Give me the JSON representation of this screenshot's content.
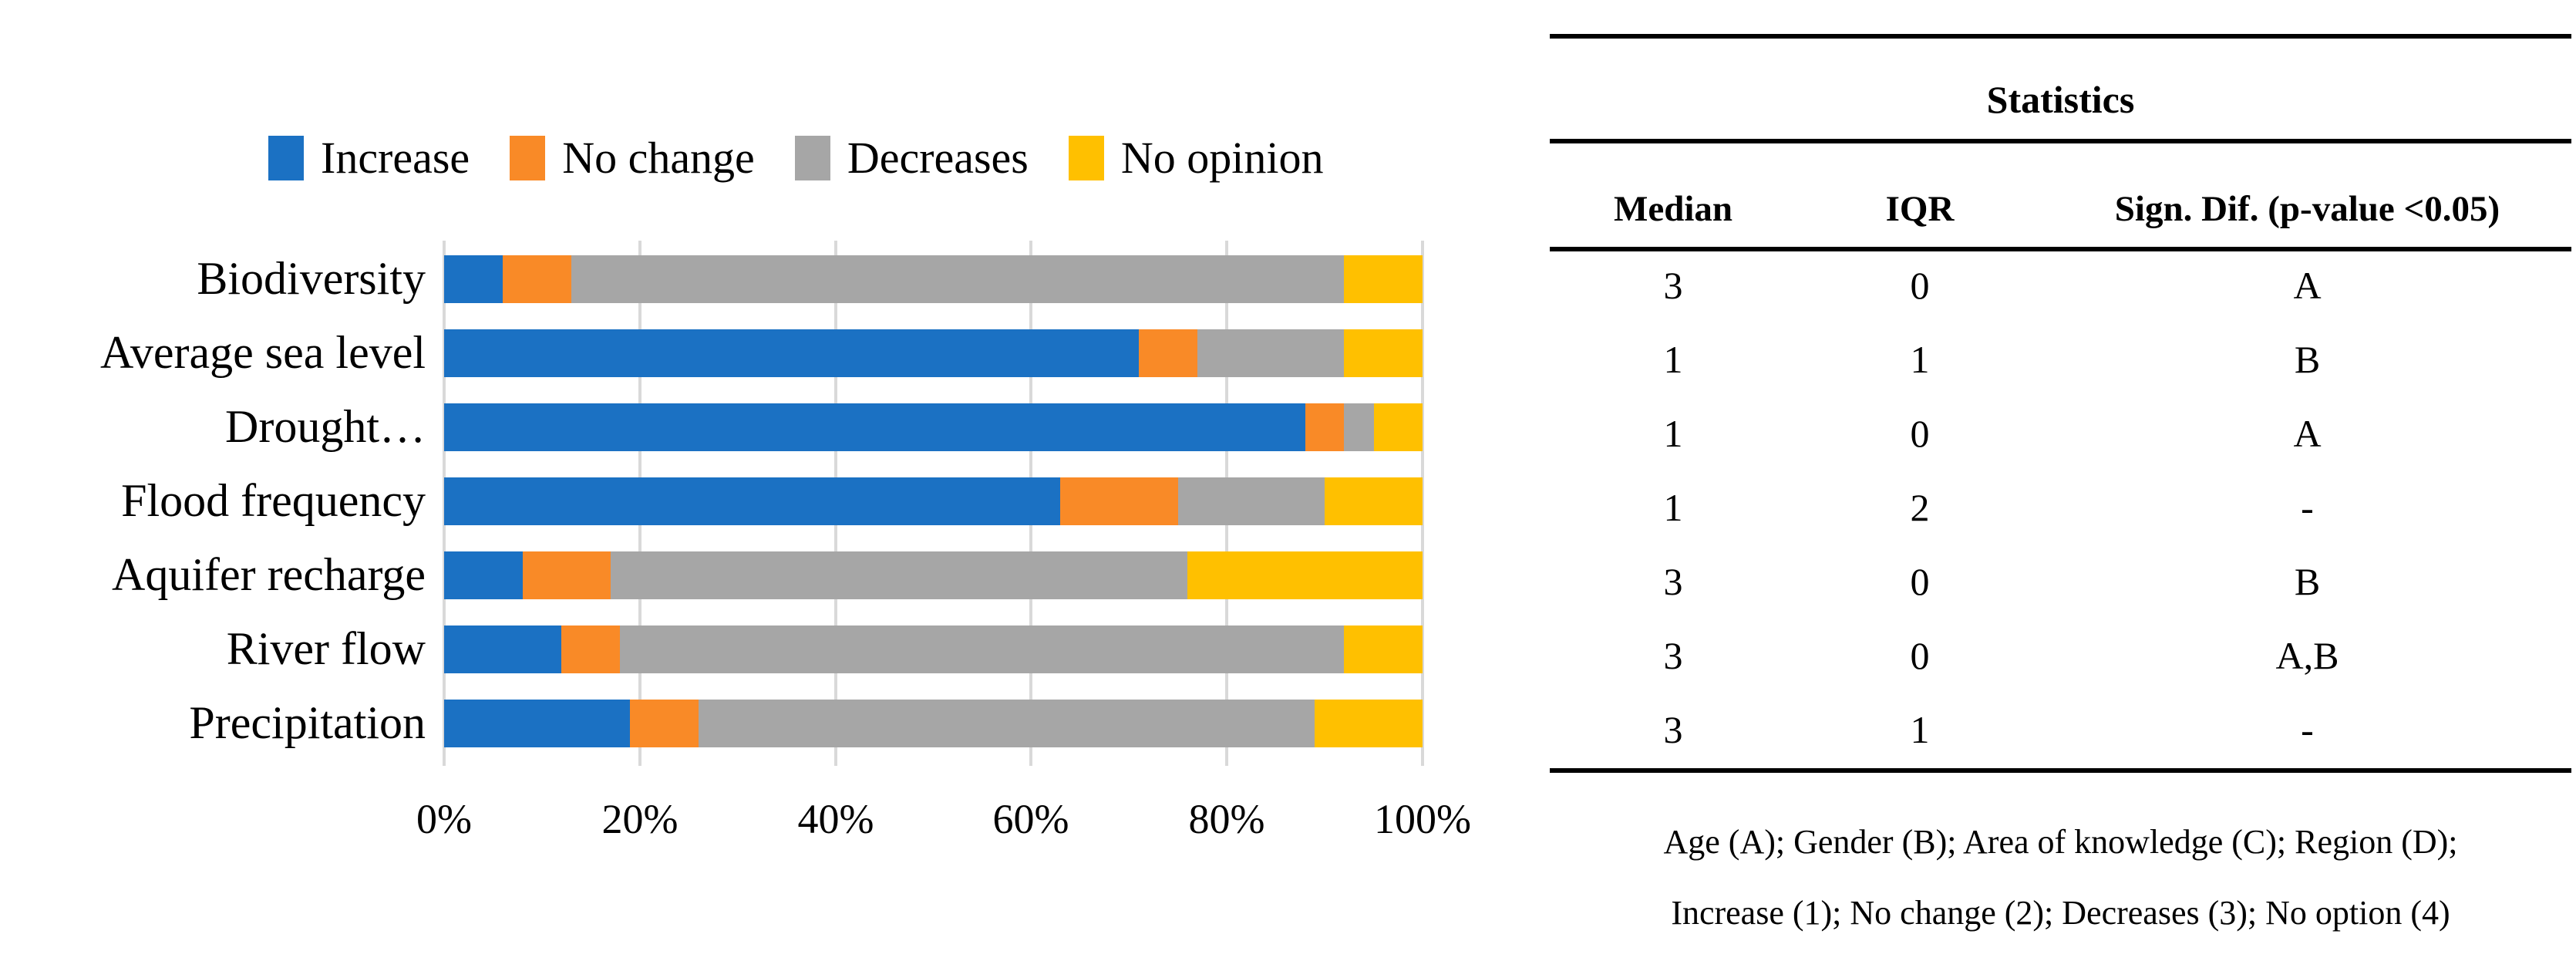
{
  "legend": [
    {
      "label": "Increase",
      "color": "#1b71c3"
    },
    {
      "label": "No change",
      "color": "#f98a27"
    },
    {
      "label": "Decreases",
      "color": "#a6a6a6"
    },
    {
      "label": "No opinion",
      "color": "#ffc000"
    }
  ],
  "chart_data": {
    "type": "bar",
    "orientation": "horizontal",
    "stacked": true,
    "unit": "percent",
    "categories": [
      "Biodiversity",
      "Average sea level",
      "Drought…",
      "Flood frequency",
      "Aquifer recharge",
      "River flow",
      "Precipitation"
    ],
    "series": [
      {
        "name": "Increase",
        "color": "#1b71c3",
        "values": [
          6,
          71,
          88,
          63,
          8,
          12,
          19
        ]
      },
      {
        "name": "No change",
        "color": "#f98a27",
        "values": [
          7,
          6,
          4,
          12,
          9,
          6,
          7
        ]
      },
      {
        "name": "Decreases",
        "color": "#a6a6a6",
        "values": [
          79,
          15,
          3,
          15,
          59,
          74,
          63
        ]
      },
      {
        "name": "No opinion",
        "color": "#ffc000",
        "values": [
          8,
          8,
          5,
          10,
          24,
          8,
          11
        ]
      }
    ],
    "x_ticks": [
      "0%",
      "20%",
      "40%",
      "60%",
      "80%",
      "100%"
    ],
    "xlim": [
      0,
      100
    ],
    "grid": true,
    "gridline_color": "#d9d9d9",
    "legend_position": "top"
  },
  "table": {
    "title": "Statistics",
    "columns": [
      "Median",
      "IQR",
      "Sign. Dif. (p-value <0.05)"
    ],
    "rows": [
      [
        "3",
        "0",
        "A"
      ],
      [
        "1",
        "1",
        "B"
      ],
      [
        "1",
        "0",
        "A"
      ],
      [
        "1",
        "2",
        "-"
      ],
      [
        "3",
        "0",
        "B"
      ],
      [
        "3",
        "0",
        "A,B"
      ],
      [
        "3",
        "1",
        "-"
      ]
    ],
    "footnotes": [
      "Age (A); Gender (B); Area of knowledge (C); Region (D);",
      "Increase (1); No change (2); Decreases (3); No option (4)"
    ]
  }
}
